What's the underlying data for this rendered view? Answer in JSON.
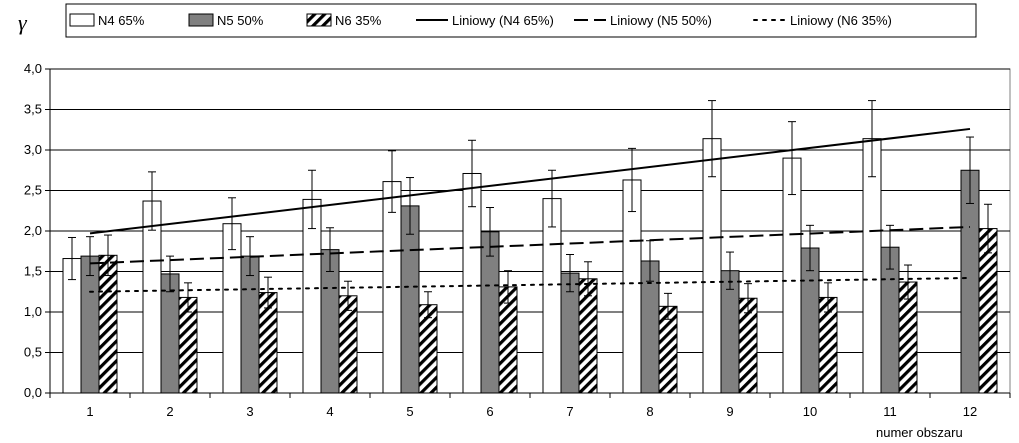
{
  "chart_data": {
    "type": "bar",
    "title": "",
    "ylabel": "γ",
    "xlabel": "numer obszaru",
    "ylim": [
      0,
      4
    ],
    "yticks": [
      "0,0",
      "0,5",
      "1,0",
      "1,5",
      "2,0",
      "2,5",
      "3,0",
      "3,5",
      "4,0"
    ],
    "categories": [
      "1",
      "2",
      "3",
      "4",
      "5",
      "6",
      "7",
      "8",
      "9",
      "10",
      "11",
      "12"
    ],
    "grid": "horizontal",
    "legend_position": "top",
    "series": [
      {
        "name": "N4 65%",
        "style": "white",
        "values": [
          1.66,
          2.37,
          2.09,
          2.39,
          2.61,
          2.71,
          2.4,
          2.63,
          3.14,
          2.9,
          3.14,
          null
        ],
        "errors": [
          0.26,
          0.36,
          0.32,
          0.36,
          0.38,
          0.41,
          0.35,
          0.39,
          0.47,
          0.45,
          0.47,
          null
        ]
      },
      {
        "name": "N5 50%",
        "style": "gray",
        "values": [
          1.69,
          1.47,
          1.69,
          1.77,
          2.31,
          1.99,
          1.48,
          1.63,
          1.51,
          1.79,
          1.8,
          2.75
        ],
        "errors": [
          0.24,
          0.22,
          0.24,
          0.27,
          0.35,
          0.3,
          0.23,
          0.25,
          0.23,
          0.28,
          0.27,
          0.41
        ]
      },
      {
        "name": "N6 35%",
        "style": "hatched",
        "values": [
          1.7,
          1.18,
          1.24,
          1.2,
          1.09,
          1.31,
          1.41,
          1.07,
          1.17,
          1.18,
          1.37,
          2.03
        ],
        "errors": [
          0.25,
          0.18,
          0.19,
          0.18,
          0.16,
          0.2,
          0.21,
          0.16,
          0.18,
          0.18,
          0.21,
          0.3
        ]
      }
    ],
    "trendlines": [
      {
        "name": "Liniowy (N4 65%)",
        "style": "solid",
        "from": [
          1,
          1.97
        ],
        "to": [
          12,
          3.26
        ]
      },
      {
        "name": "Liniowy (N5 50%)",
        "style": "dashed",
        "from": [
          1,
          1.6
        ],
        "to": [
          12,
          2.05
        ]
      },
      {
        "name": "Liniowy (N6 35%)",
        "style": "dotted",
        "from": [
          1,
          1.25
        ],
        "to": [
          12,
          1.42
        ]
      }
    ]
  }
}
